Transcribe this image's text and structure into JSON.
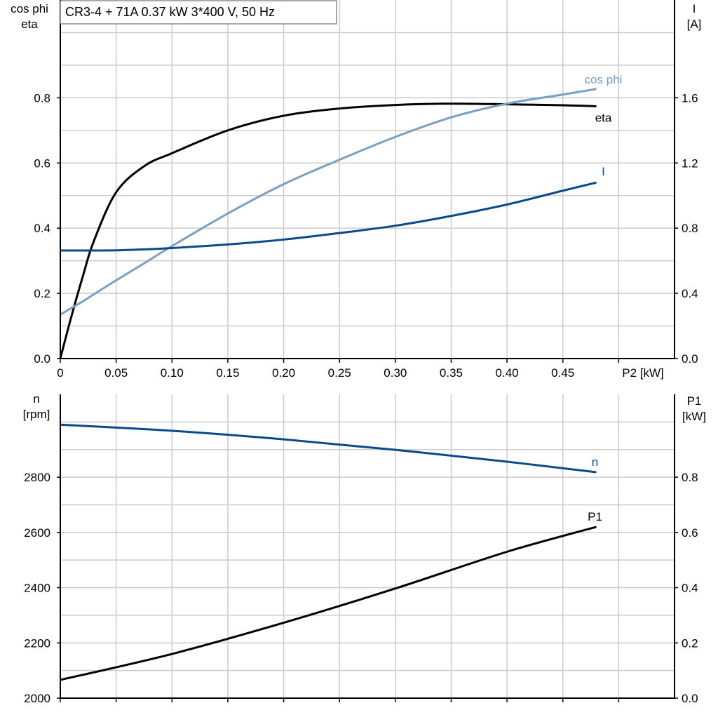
{
  "title": "CR3-4 + 71A   0.37 kW   3*400 V, 50 Hz",
  "colors": {
    "eta": "#000000",
    "cos_phi": "#7a9fc2",
    "I": "#0b4a8a",
    "n": "#0b4a8a",
    "P1": "#000000",
    "grid": "#cccccc"
  },
  "chart_data": [
    {
      "type": "line",
      "left_axis_label": [
        "cos phi",
        "eta"
      ],
      "right_axis_label": [
        "I",
        "[A]"
      ],
      "xlabel": "P2 [kW]",
      "xlim": [
        0,
        0.55
      ],
      "ylim_left": [
        0,
        1.1
      ],
      "ylim_right": [
        0,
        2.2
      ],
      "grid": true,
      "x_ticks": [
        "0",
        "0.05",
        "0.10",
        "0.15",
        "0.20",
        "0.25",
        "0.30",
        "0.35",
        "0.40",
        "0.45"
      ],
      "y_left_ticks": [
        "0.0",
        "0.2",
        "0.4",
        "0.6",
        "0.8"
      ],
      "y_right_ticks": [
        "0.0",
        "0.4",
        "0.8",
        "1.2",
        "1.6"
      ],
      "x": [
        0,
        0.01,
        0.02,
        0.03,
        0.05,
        0.075,
        0.1,
        0.15,
        0.2,
        0.25,
        0.3,
        0.35,
        0.4,
        0.45,
        0.48
      ],
      "series": [
        {
          "name": "eta",
          "axis": "left",
          "values": [
            0,
            0.13,
            0.25,
            0.36,
            0.51,
            0.59,
            0.63,
            0.7,
            0.745,
            0.767,
            0.778,
            0.782,
            0.78,
            0.777,
            0.774
          ]
        },
        {
          "name": "cos phi",
          "axis": "left",
          "values": [
            0.135,
            0.155,
            0.175,
            0.197,
            0.24,
            0.292,
            0.345,
            0.445,
            0.535,
            0.61,
            0.68,
            0.74,
            0.782,
            0.81,
            0.827
          ]
        },
        {
          "name": "I",
          "axis": "right",
          "values": [
            0.663,
            0.663,
            0.663,
            0.663,
            0.664,
            0.67,
            0.678,
            0.7,
            0.73,
            0.77,
            0.815,
            0.875,
            0.945,
            1.03,
            1.08
          ]
        }
      ]
    },
    {
      "type": "line",
      "left_axis_label": [
        "n",
        "[rpm]"
      ],
      "right_axis_label": [
        "P1",
        "[kW]"
      ],
      "xlim": [
        0,
        0.55
      ],
      "ylim_left": [
        2000,
        3100
      ],
      "ylim_right": [
        0,
        1.1
      ],
      "grid": true,
      "y_left_ticks": [
        "2000",
        "2200",
        "2400",
        "2600",
        "2800"
      ],
      "y_right_ticks": [
        "0.0",
        "0.2",
        "0.4",
        "0.6",
        "0.8"
      ],
      "x": [
        0,
        0.1,
        0.2,
        0.3,
        0.4,
        0.48
      ],
      "series": [
        {
          "name": "n",
          "axis": "left",
          "values": [
            2990,
            2968,
            2937,
            2899,
            2856,
            2818
          ]
        },
        {
          "name": "P1",
          "axis": "right",
          "values": [
            0.066,
            0.16,
            0.273,
            0.397,
            0.53,
            0.62
          ]
        }
      ]
    }
  ]
}
